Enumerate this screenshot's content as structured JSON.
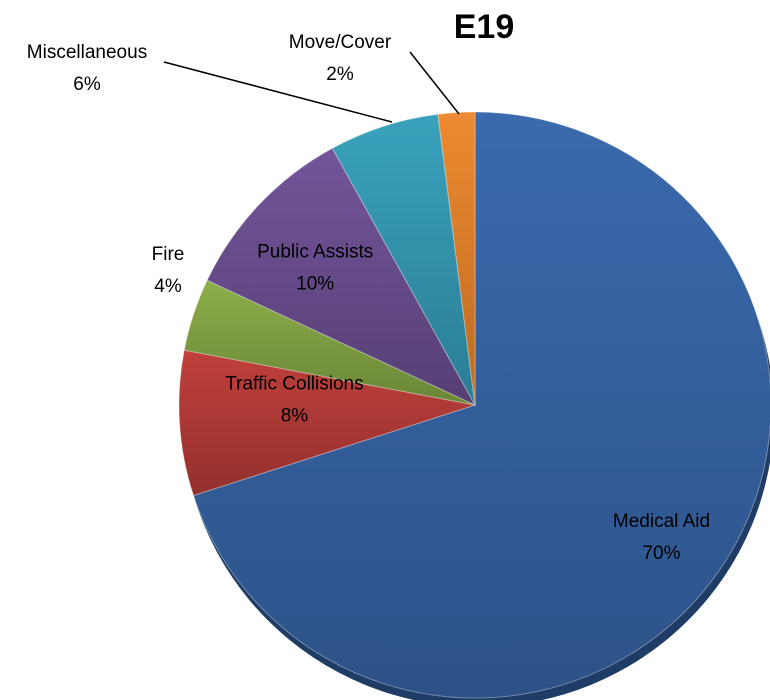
{
  "chart_data": {
    "type": "pie",
    "title": "E19",
    "start": "top",
    "direction": "clockwise",
    "slices": [
      {
        "label": "Medical Aid",
        "value": 70,
        "value_label": "70%",
        "color": "#3a6aad",
        "color_dark": "#2d5288"
      },
      {
        "label": "Traffic Collisions",
        "value": 8,
        "value_label": "8%",
        "color": "#c0403c",
        "color_dark": "#93302d"
      },
      {
        "label": "Fire",
        "value": 4,
        "value_label": "4%",
        "color": "#8cae4a",
        "color_dark": "#6a8636"
      },
      {
        "label": "Public Assists",
        "value": 10,
        "value_label": "10%",
        "color": "#73559a",
        "color_dark": "#563f75"
      },
      {
        "label": "Miscellaneous",
        "value": 6,
        "value_label": "6%",
        "color": "#3aa2bd",
        "color_dark": "#2a7d93"
      },
      {
        "label": "Move/Cover",
        "value": 2,
        "value_label": "2%",
        "color": "#ee8a30",
        "color_dark": "#bd6a20"
      }
    ]
  }
}
